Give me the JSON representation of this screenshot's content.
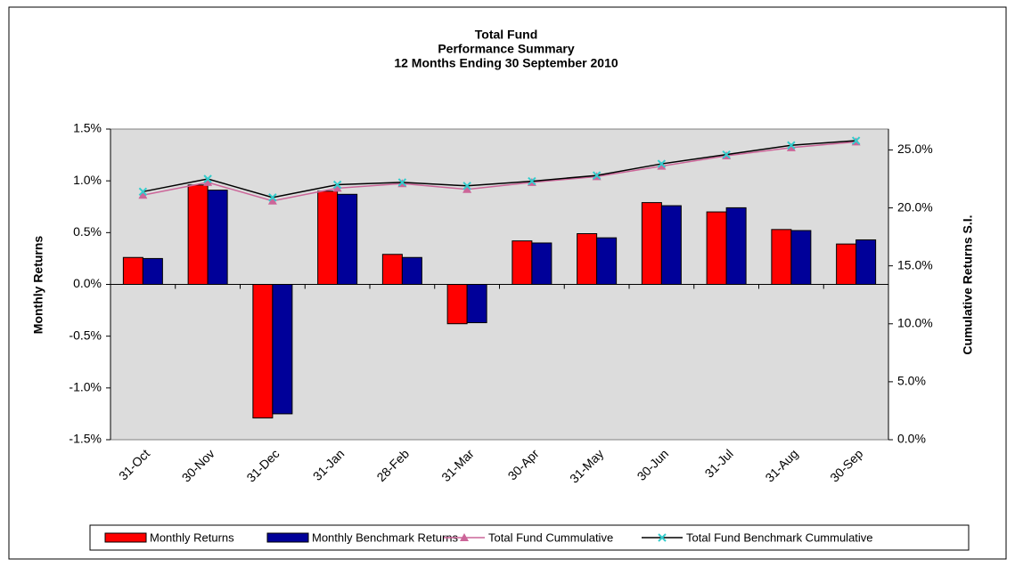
{
  "chart_data": {
    "type": "bar",
    "title": [
      "Total Fund",
      "Performance Summary",
      "12 Months Ending 30 September 2010"
    ],
    "y_label": "Monthly Returns",
    "y2_label": "Cumulative Returns S.I.",
    "categories": [
      "31-Oct",
      "30-Nov",
      "31-Dec",
      "31-Jan",
      "28-Feb",
      "31-Mar",
      "30-Apr",
      "31-May",
      "30-Jun",
      "31-Jul",
      "31-Aug",
      "30-Sep"
    ],
    "ylim": [
      -1.5,
      1.5
    ],
    "yticks": [
      {
        "value": 1.5,
        "label": "1.5%"
      },
      {
        "value": 1.0,
        "label": "1.0%"
      },
      {
        "value": 0.5,
        "label": "0.5%"
      },
      {
        "value": 0.0,
        "label": "0.0%"
      },
      {
        "value": -0.5,
        "label": "-0.5%"
      },
      {
        "value": -1.0,
        "label": "-1.0%"
      },
      {
        "value": -1.5,
        "label": "-1.5%"
      }
    ],
    "y2lim": [
      0,
      26.8
    ],
    "y2ticks": [
      {
        "value": 25,
        "label": "25.0%"
      },
      {
        "value": 20,
        "label": "20.0%"
      },
      {
        "value": 15,
        "label": "15.0%"
      },
      {
        "value": 10,
        "label": "10.0%"
      },
      {
        "value": 5,
        "label": "5.0%"
      },
      {
        "value": 0,
        "label": "0.0%"
      }
    ],
    "grid": false,
    "legend": "bottom",
    "series": [
      {
        "name": "Monthly Returns",
        "type": "bar",
        "color": "#ff0000",
        "values": [
          0.26,
          0.96,
          -1.29,
          0.9,
          0.29,
          -0.38,
          0.42,
          0.49,
          0.79,
          0.7,
          0.53,
          0.39
        ]
      },
      {
        "name": "Monthly Benchmark Returns",
        "type": "bar",
        "color": "#000099",
        "values": [
          0.25,
          0.91,
          -1.25,
          0.87,
          0.26,
          -0.37,
          0.4,
          0.45,
          0.76,
          0.74,
          0.52,
          0.43
        ]
      },
      {
        "name": "Total Fund Cummulative",
        "type": "line",
        "axis": "y2",
        "color": "#cc6699",
        "marker": "triangle",
        "marker_color": "#cc6699",
        "values": [
          21.1,
          22.2,
          20.6,
          21.7,
          22.1,
          21.6,
          22.2,
          22.7,
          23.6,
          24.5,
          25.2,
          25.7
        ]
      },
      {
        "name": "Total Fund Benchmark Cummulative",
        "type": "line",
        "axis": "y2",
        "color": "#000000",
        "marker": "x",
        "marker_color": "#33cccc",
        "values": [
          21.4,
          22.5,
          20.9,
          22.0,
          22.2,
          21.9,
          22.3,
          22.8,
          23.8,
          24.6,
          25.4,
          25.8
        ]
      }
    ]
  }
}
